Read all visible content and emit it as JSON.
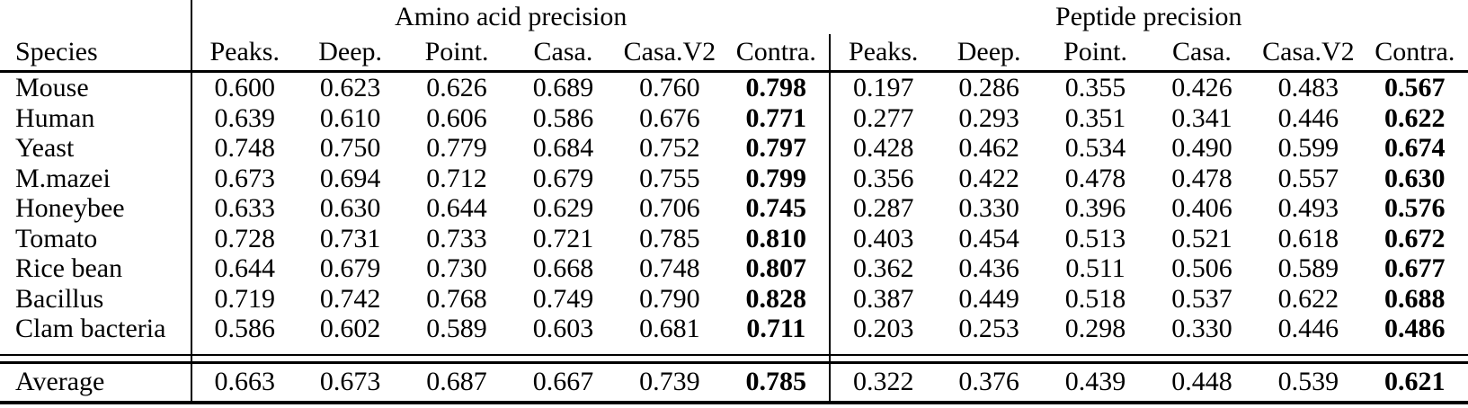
{
  "table": {
    "species_header": "Species",
    "group_headers": [
      "Amino acid precision",
      "Peptide precision"
    ],
    "method_columns": [
      "Peaks.",
      "Deep.",
      "Point.",
      "Casa.",
      "Casa.V2",
      "Contra."
    ],
    "bold_method": "Contra.",
    "rows": [
      {
        "species": "Mouse",
        "amino_acid": [
          "0.600",
          "0.623",
          "0.626",
          "0.689",
          "0.760",
          "0.798"
        ],
        "peptide": [
          "0.197",
          "0.286",
          "0.355",
          "0.426",
          "0.483",
          "0.567"
        ]
      },
      {
        "species": "Human",
        "amino_acid": [
          "0.639",
          "0.610",
          "0.606",
          "0.586",
          "0.676",
          "0.771"
        ],
        "peptide": [
          "0.277",
          "0.293",
          "0.351",
          "0.341",
          "0.446",
          "0.622"
        ]
      },
      {
        "species": "Yeast",
        "amino_acid": [
          "0.748",
          "0.750",
          "0.779",
          "0.684",
          "0.752",
          "0.797"
        ],
        "peptide": [
          "0.428",
          "0.462",
          "0.534",
          "0.490",
          "0.599",
          "0.674"
        ]
      },
      {
        "species": "M.mazei",
        "amino_acid": [
          "0.673",
          "0.694",
          "0.712",
          "0.679",
          "0.755",
          "0.799"
        ],
        "peptide": [
          "0.356",
          "0.422",
          "0.478",
          "0.478",
          "0.557",
          "0.630"
        ]
      },
      {
        "species": "Honeybee",
        "amino_acid": [
          "0.633",
          "0.630",
          "0.644",
          "0.629",
          "0.706",
          "0.745"
        ],
        "peptide": [
          "0.287",
          "0.330",
          "0.396",
          "0.406",
          "0.493",
          "0.576"
        ]
      },
      {
        "species": "Tomato",
        "amino_acid": [
          "0.728",
          "0.731",
          "0.733",
          "0.721",
          "0.785",
          "0.810"
        ],
        "peptide": [
          "0.403",
          "0.454",
          "0.513",
          "0.521",
          "0.618",
          "0.672"
        ]
      },
      {
        "species": "Rice bean",
        "amino_acid": [
          "0.644",
          "0.679",
          "0.730",
          "0.668",
          "0.748",
          "0.807"
        ],
        "peptide": [
          "0.362",
          "0.436",
          "0.511",
          "0.506",
          "0.589",
          "0.677"
        ]
      },
      {
        "species": "Bacillus",
        "amino_acid": [
          "0.719",
          "0.742",
          "0.768",
          "0.749",
          "0.790",
          "0.828"
        ],
        "peptide": [
          "0.387",
          "0.449",
          "0.518",
          "0.537",
          "0.622",
          "0.688"
        ]
      },
      {
        "species": "Clam bacteria",
        "amino_acid": [
          "0.586",
          "0.602",
          "0.589",
          "0.603",
          "0.681",
          "0.711"
        ],
        "peptide": [
          "0.203",
          "0.253",
          "0.298",
          "0.330",
          "0.446",
          "0.486"
        ]
      }
    ],
    "average": {
      "species": "Average",
      "amino_acid": [
        "0.663",
        "0.673",
        "0.687",
        "0.667",
        "0.739",
        "0.785"
      ],
      "peptide": [
        "0.322",
        "0.376",
        "0.439",
        "0.448",
        "0.539",
        "0.621"
      ]
    },
    "colors": {
      "text": "#000000",
      "background": "#ffffff"
    }
  }
}
